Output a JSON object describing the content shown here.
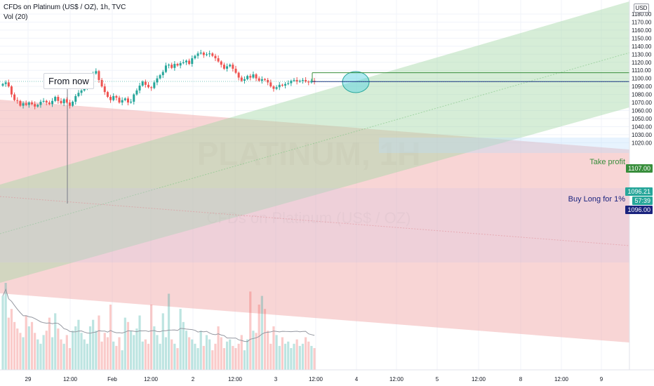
{
  "header": {
    "symbol_line": "CFDs on Platinum (US$ / OZ), 1h, TVC",
    "indicator_line": "Vol (20)"
  },
  "currency_label": "USD",
  "watermark": {
    "title": "PLATINUM, 1H",
    "subtitle": "CFDs on Platinum (US$ / OZ)"
  },
  "annotations": {
    "from_now": "From now",
    "take_profit": "Take profit",
    "buy_long": "Buy Long for 1%"
  },
  "price_tags": {
    "take_profit": "1107.00",
    "current_price": "1096.21",
    "countdown": "57:39",
    "entry": "1096.00"
  },
  "colors": {
    "bull": "#26a69a",
    "bear": "#ef5350",
    "take_profit_line": "#388e3c",
    "entry_line": "#1a237e",
    "green_channel": "#a5d6a7",
    "red_channel": "#ef9a9a",
    "ellipse": "#4dd0e1"
  },
  "chart_data": {
    "type": "candlestick",
    "symbol": "CFDs on Platinum (US$ / OZ)",
    "interval": "1h",
    "source": "TVC",
    "y_axis": {
      "ticks": [
        1020,
        1030,
        1040,
        1050,
        1060,
        1070,
        1080,
        1090,
        1100,
        1110,
        1120,
        1130,
        1140,
        1150,
        1160,
        1170,
        1180
      ],
      "tick_labels": [
        "1020.00",
        "1030.00",
        "1040.00",
        "1050.00",
        "1060.00",
        "1070.00",
        "1080.00",
        "1090.00",
        "1100.00",
        "1110.00",
        "1120.00",
        "1130.00",
        "1140.00",
        "1150.00",
        "1160.00",
        "1170.00",
        "1180.00"
      ]
    },
    "x_axis": {
      "labels": [
        "29",
        "12:00",
        "Feb",
        "12:00",
        "2",
        "12:00",
        "3",
        "12:00",
        "4",
        "12:00",
        "5",
        "12:00",
        "8",
        "12:00",
        "9"
      ]
    },
    "series": [
      {
        "name": "Vol (20)"
      }
    ],
    "candles_close": [
      1093,
      1095,
      1090,
      1080,
      1073,
      1072,
      1066,
      1069,
      1067,
      1070,
      1068,
      1065,
      1067,
      1071,
      1072,
      1070,
      1068,
      1072,
      1077,
      1072,
      1069,
      1074,
      1070,
      1066,
      1071,
      1078,
      1082,
      1085,
      1089,
      1094,
      1100,
      1106,
      1109,
      1098,
      1090,
      1083,
      1077,
      1073,
      1078,
      1076,
      1070,
      1073,
      1075,
      1070,
      1071,
      1080,
      1085,
      1091,
      1096,
      1092,
      1089,
      1088,
      1095,
      1100,
      1104,
      1108,
      1116,
      1117,
      1113,
      1118,
      1116,
      1119,
      1120,
      1122,
      1118,
      1125,
      1128,
      1131,
      1132,
      1129,
      1130,
      1131,
      1128,
      1125,
      1121,
      1117,
      1112,
      1115,
      1117,
      1112,
      1107,
      1101,
      1097,
      1099,
      1103,
      1101,
      1105,
      1100,
      1097,
      1099,
      1098,
      1095,
      1090,
      1087,
      1089,
      1092,
      1091,
      1093,
      1094,
      1097,
      1098,
      1096,
      1097,
      1098,
      1096,
      1095,
      1097,
      1096
    ],
    "volume": [
      34,
      40,
      24,
      28,
      22,
      19,
      17,
      15,
      25,
      20,
      22,
      17,
      14,
      12,
      16,
      18,
      24,
      15,
      26,
      19,
      14,
      12,
      16,
      10,
      18,
      20,
      23,
      17,
      14,
      12,
      20,
      23,
      18,
      25,
      13,
      17,
      15,
      30,
      13,
      11,
      15,
      9,
      24,
      22,
      18,
      16,
      19,
      25,
      13,
      14,
      12,
      30,
      20,
      16,
      12,
      26,
      15,
      35,
      14,
      12,
      10,
      28,
      22,
      18,
      15,
      14,
      12,
      10,
      18,
      11,
      16,
      14,
      9,
      12,
      20,
      15,
      10,
      13,
      14,
      11,
      10,
      12,
      16,
      9,
      14,
      36,
      18,
      17,
      30,
      34,
      28,
      18,
      12,
      20,
      16,
      11,
      15,
      12,
      13,
      10,
      12,
      14,
      11,
      12,
      15,
      13,
      11,
      10
    ],
    "levels": {
      "take_profit": 1107.0,
      "entry": 1096.0,
      "current_price": 1096.21
    }
  }
}
